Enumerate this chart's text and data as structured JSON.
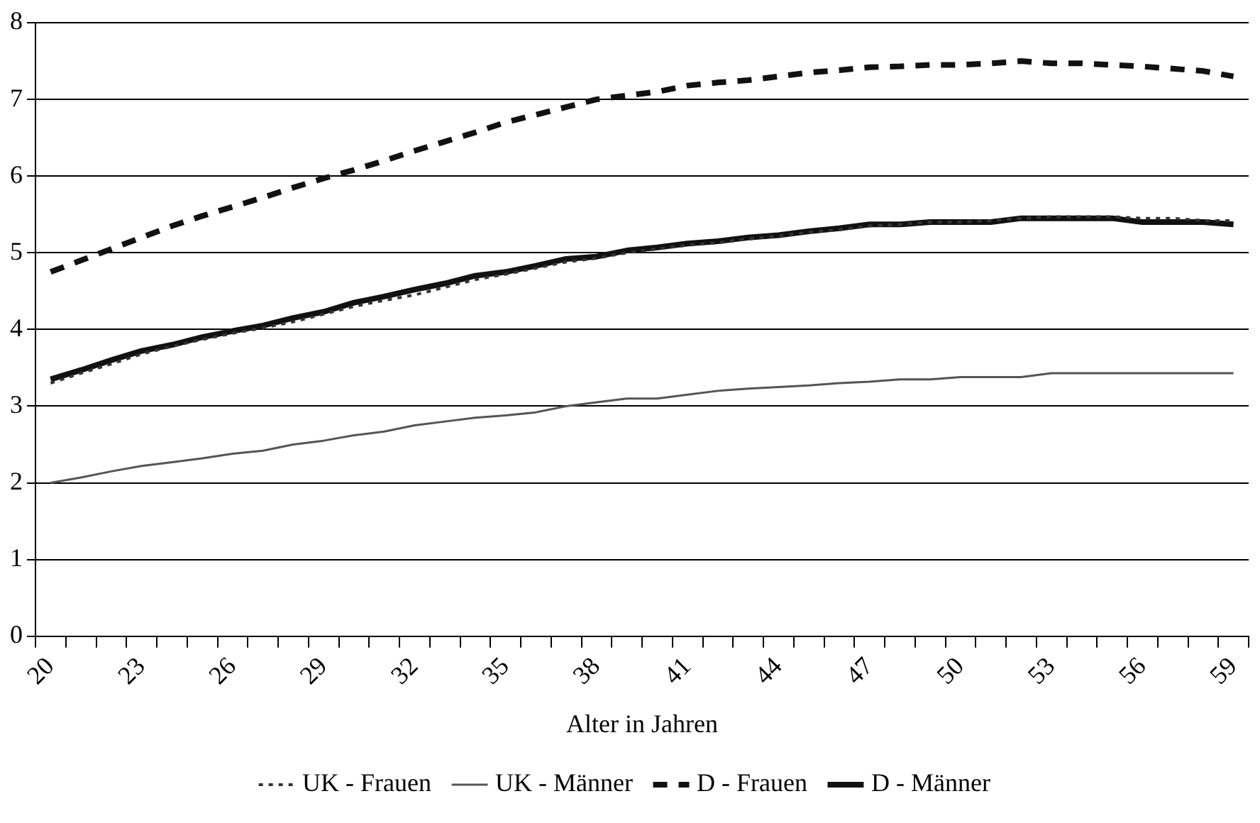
{
  "chart_data": {
    "type": "line",
    "xlabel": "Alter in Jahren",
    "categories": [
      "20",
      null,
      null,
      "23",
      null,
      null,
      "26",
      null,
      null,
      "29",
      null,
      null,
      "32",
      null,
      null,
      "35",
      null,
      null,
      "38",
      null,
      null,
      "41",
      null,
      null,
      "44",
      null,
      null,
      "47",
      null,
      null,
      "50",
      null,
      null,
      "53",
      null,
      null,
      "56",
      null,
      null,
      "59"
    ],
    "series": [
      {
        "name": "UK - Frauen",
        "color": "#333333",
        "line_style": "dotted",
        "values": [
          3.3,
          3.43,
          3.55,
          3.68,
          3.78,
          3.87,
          3.95,
          4.02,
          4.1,
          4.2,
          4.3,
          4.38,
          4.45,
          4.55,
          4.65,
          4.72,
          4.8,
          4.88,
          4.93,
          5.0,
          5.05,
          5.1,
          5.13,
          5.18,
          5.22,
          5.27,
          5.3,
          5.35,
          5.37,
          5.4,
          5.4,
          5.42,
          5.45,
          5.47,
          5.47,
          5.47,
          5.45,
          5.45,
          5.42,
          5.42
        ]
      },
      {
        "name": "UK - Männer",
        "color": "#555555",
        "line_style": "solid",
        "values": [
          2.0,
          2.07,
          2.15,
          2.22,
          2.27,
          2.32,
          2.38,
          2.42,
          2.5,
          2.55,
          2.62,
          2.67,
          2.75,
          2.8,
          2.85,
          2.88,
          2.92,
          3.0,
          3.05,
          3.1,
          3.1,
          3.15,
          3.2,
          3.23,
          3.25,
          3.27,
          3.3,
          3.32,
          3.35,
          3.35,
          3.38,
          3.38,
          3.38,
          3.43,
          3.43,
          3.43,
          3.43,
          3.43,
          3.43,
          3.43
        ]
      },
      {
        "name": "D - Frauen",
        "color": "#111111",
        "line_style": "dashed",
        "values": [
          4.75,
          4.9,
          5.05,
          5.2,
          5.35,
          5.48,
          5.6,
          5.72,
          5.85,
          5.97,
          6.08,
          6.2,
          6.33,
          6.45,
          6.57,
          6.7,
          6.8,
          6.9,
          7.0,
          7.05,
          7.1,
          7.18,
          7.22,
          7.25,
          7.3,
          7.35,
          7.38,
          7.42,
          7.43,
          7.45,
          7.45,
          7.47,
          7.5,
          7.47,
          7.47,
          7.45,
          7.43,
          7.4,
          7.37,
          7.3
        ]
      },
      {
        "name": "D - Männer",
        "color": "#111111",
        "line_style": "solid",
        "values": [
          3.35,
          3.47,
          3.6,
          3.72,
          3.8,
          3.9,
          3.98,
          4.05,
          4.15,
          4.23,
          4.35,
          4.43,
          4.52,
          4.6,
          4.7,
          4.75,
          4.83,
          4.92,
          4.95,
          5.03,
          5.07,
          5.12,
          5.15,
          5.2,
          5.23,
          5.28,
          5.32,
          5.37,
          5.37,
          5.4,
          5.4,
          5.4,
          5.45,
          5.45,
          5.45,
          5.45,
          5.4,
          5.4,
          5.4,
          5.37
        ]
      }
    ],
    "ylim": [
      0,
      8
    ],
    "yticks": [
      0,
      1,
      2,
      3,
      4,
      5,
      6,
      7,
      8
    ],
    "grid": "y",
    "legend": "bottom",
    "marker": "none"
  }
}
